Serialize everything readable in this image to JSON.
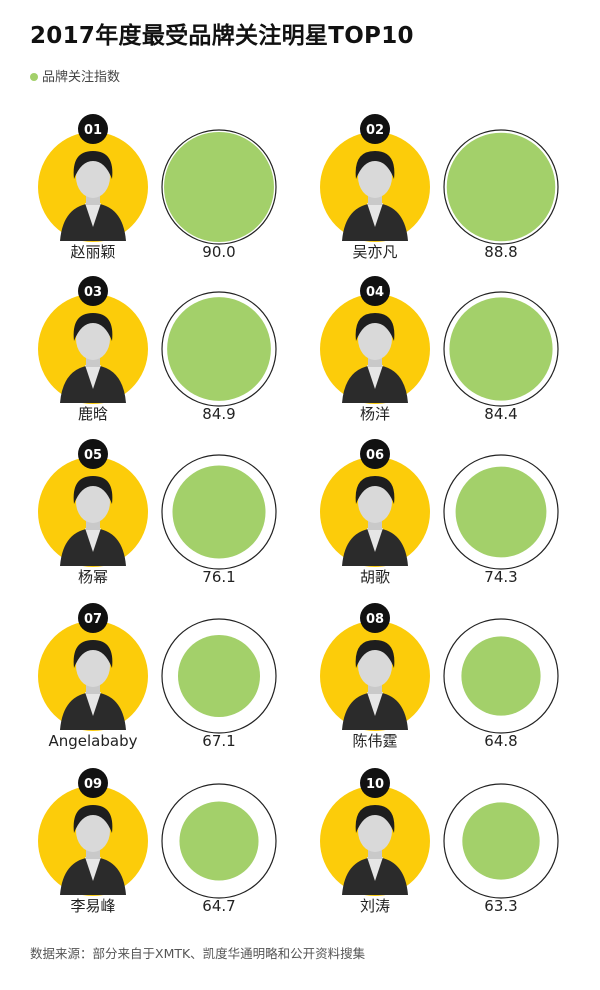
{
  "title": "2017年度最受品牌关注明星TOP10",
  "colors": {
    "yellow": "#fccc0a",
    "green": "#a3d06a",
    "badge": "#111111",
    "ring": "#222222"
  },
  "chart_data": {
    "type": "bubble",
    "title": "2017年度最受品牌关注明星TOP10",
    "series": [
      {
        "name": "品牌关注指数",
        "values": [
          90.0,
          88.8,
          84.9,
          84.4,
          76.1,
          74.3,
          67.1,
          64.8,
          64.7,
          63.3
        ]
      }
    ],
    "categories": [
      "赵丽颖",
      "吴亦凡",
      "鹿晗",
      "杨洋",
      "杨幂",
      "胡歌",
      "Angelababy",
      "陈伟霆",
      "李易峰",
      "刘涛"
    ],
    "ranks": [
      "01",
      "02",
      "03",
      "04",
      "05",
      "06",
      "07",
      "08",
      "09",
      "10"
    ],
    "value_labels": [
      "90.0",
      "88.8",
      "84.9",
      "84.4",
      "76.1",
      "74.3",
      "67.1",
      "64.8",
      "64.7",
      "63.3"
    ],
    "max_value": 90.0
  },
  "source": "数据来源：部分来自于XMTK、凯度华通明略和公开资料搜集"
}
